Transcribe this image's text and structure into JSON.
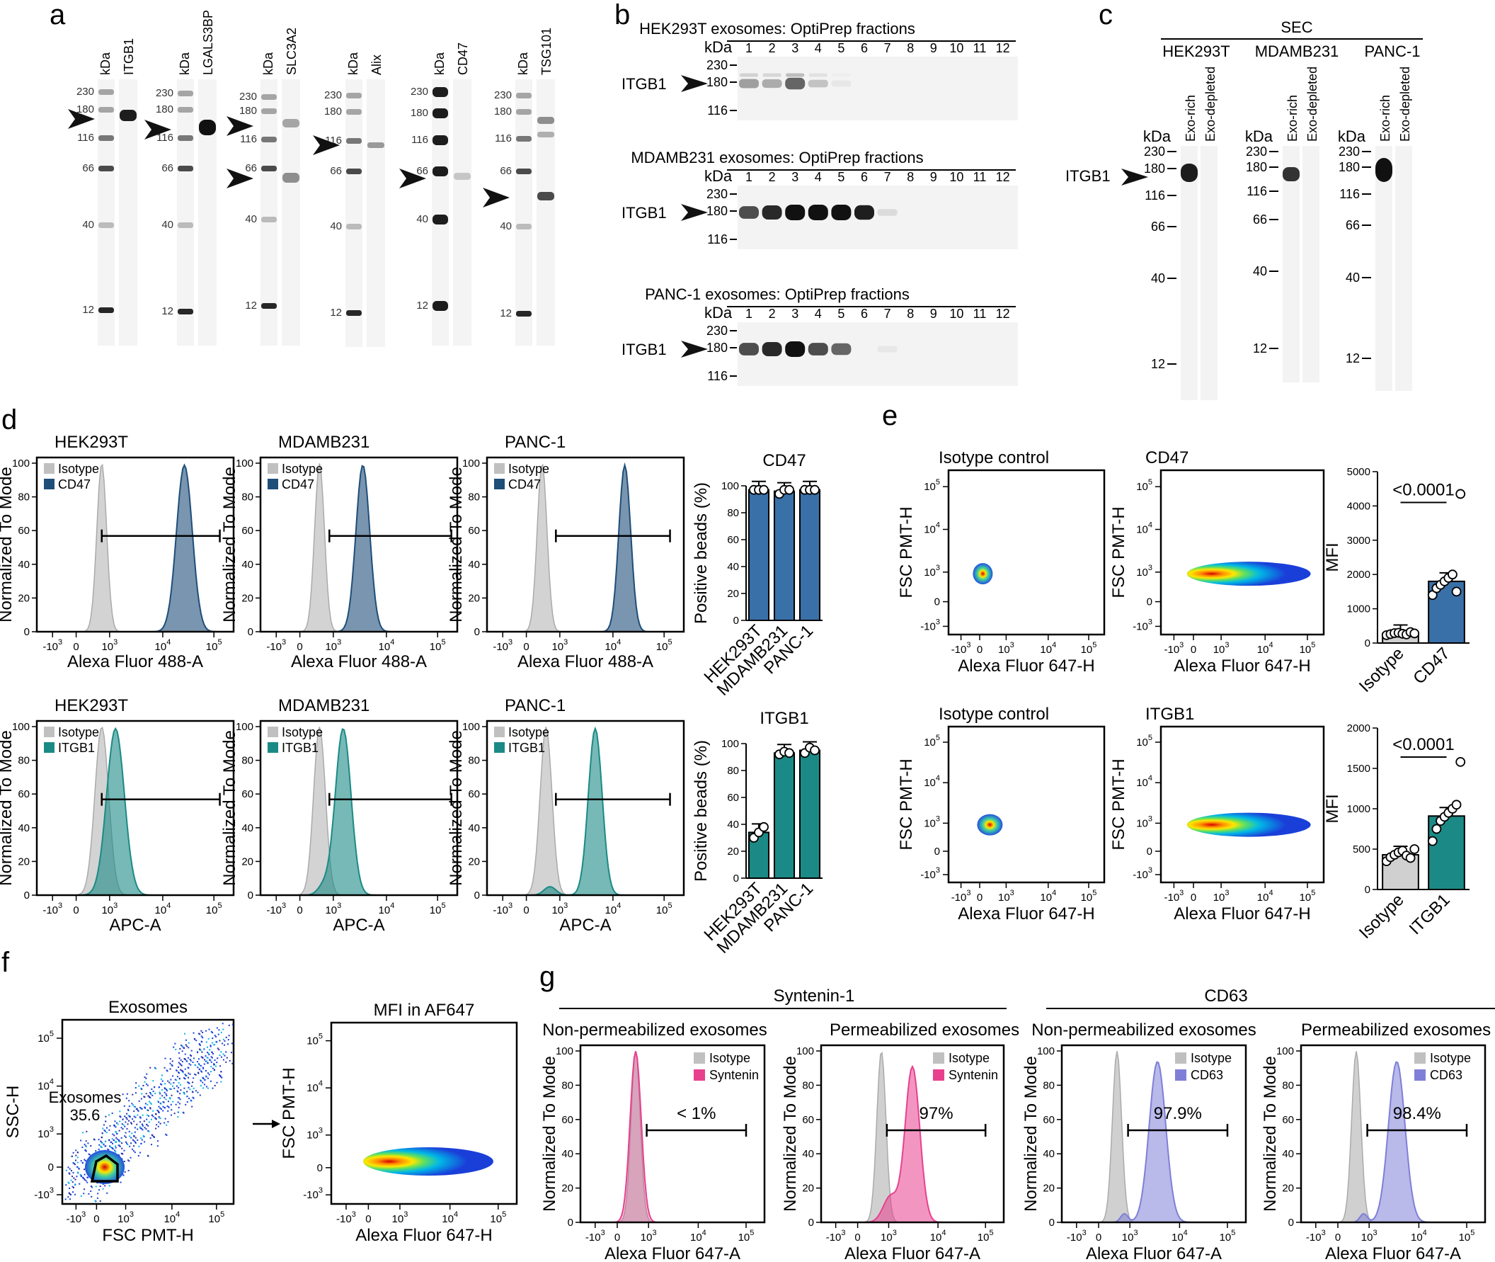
{
  "panels": {
    "a": {
      "label": "a",
      "kda": "kDa",
      "blots": [
        {
          "marker_labels": [
            "230",
            "180",
            "116",
            "66",
            "40",
            "12"
          ],
          "target": "ITGB1"
        },
        {
          "marker_labels": [
            "230",
            "180",
            "116",
            "66",
            "40",
            "12"
          ],
          "target": "LGALS3BP"
        },
        {
          "marker_labels": [
            "230",
            "180",
            "116",
            "66",
            "40",
            "12"
          ],
          "target": "SLC3A2"
        },
        {
          "marker_labels": [
            "230",
            "180",
            "116",
            "66",
            "40",
            "12"
          ],
          "target": "Alix"
        },
        {
          "marker_labels": [
            "230",
            "180",
            "116",
            "66",
            "40",
            "12"
          ],
          "target": "CD47"
        },
        {
          "marker_labels": [
            "230",
            "180",
            "116",
            "66",
            "40",
            "12"
          ],
          "target": "TSG101"
        }
      ]
    },
    "b": {
      "label": "b",
      "kda": "kDa",
      "target": "ITGB1",
      "fractions": [
        "1",
        "2",
        "3",
        "4",
        "5",
        "6",
        "7",
        "8",
        "9",
        "10",
        "11",
        "12"
      ],
      "markers": [
        "230",
        "180",
        "116"
      ],
      "blots": [
        {
          "title": "HEK293T exosomes: OptiPrep fractions",
          "band_intensity": [
            0.35,
            0.3,
            0.6,
            0.2,
            0.05,
            0,
            0,
            0,
            0,
            0,
            0,
            0
          ]
        },
        {
          "title": "MDAMB231 exosomes: OptiPrep fractions",
          "band_intensity": [
            0.7,
            0.85,
            1,
            1,
            1,
            0.9,
            0.1,
            0,
            0,
            0,
            0,
            0
          ]
        },
        {
          "title": "PANC-1 exosomes: OptiPrep fractions",
          "band_intensity": [
            0.7,
            0.85,
            1,
            0.7,
            0.6,
            0,
            0.05,
            0,
            0,
            0,
            0,
            0
          ]
        }
      ]
    },
    "c": {
      "label": "c",
      "header": "SEC",
      "kda": "kDa",
      "target": "ITGB1",
      "lanes": [
        "Exo-rich",
        "Exo-depleted"
      ],
      "markers": [
        "230",
        "180",
        "116",
        "66",
        "40",
        "12"
      ],
      "cells": [
        "HEK293T",
        "MDAMB231",
        "PANC-1"
      ]
    },
    "d": {
      "label": "d",
      "ylabel": "Normalized To Mode",
      "yticks": [
        "0",
        "20",
        "40",
        "60",
        "80",
        "100"
      ],
      "xticks": [
        "-10",
        "0",
        "10",
        "10",
        "10"
      ],
      "xexp": [
        "3",
        "",
        "3",
        "4",
        "5"
      ],
      "isotype": "Isotype",
      "rows": [
        {
          "marker": "CD47",
          "xlabel": "Alexa Fluor 488-A",
          "cells": [
            "HEK293T",
            "MDAMB231",
            "PANC-1"
          ],
          "color": "#1f4e79"
        },
        {
          "marker": "ITGB1",
          "xlabel": "APC-A",
          "cells": [
            "HEK293T",
            "MDAMB231",
            "PANC-1"
          ],
          "color": "#1b8a86"
        }
      ],
      "bar_ylabel": "Positive beads (%)",
      "bar_yticks": [
        "0",
        "20",
        "40",
        "60",
        "80",
        "100"
      ]
    },
    "e": {
      "label": "e",
      "ylabel": "FSC PMT-H",
      "xlabel": "Alexa Fluor 647-H",
      "rows": [
        {
          "left_title": "Isotype control",
          "right_title": "CD47",
          "mfi_ticks": [
            "0",
            "1000",
            "2000",
            "3000",
            "4000",
            "5000"
          ],
          "pval": "<0.0001",
          "groups": [
            "Isotype",
            "CD47"
          ]
        },
        {
          "left_title": "Isotype control",
          "right_title": "ITGB1",
          "mfi_ticks": [
            "0",
            "500",
            "1000",
            "1500",
            "2000"
          ],
          "pval": "<0.0001",
          "groups": [
            "Isotype",
            "ITGB1"
          ]
        }
      ],
      "mfi_label": "MFI",
      "yticks": [
        "-10",
        "0",
        "10",
        "10",
        "10"
      ],
      "yexp": [
        "3",
        "",
        "3",
        "4",
        "5"
      ]
    },
    "f": {
      "label": "f",
      "left_title": "Exosomes",
      "gate_label": "Exosomes",
      "gate_value": "35.6",
      "left_ylabel": "SSC-H",
      "left_xlabel": "FSC PMT-H",
      "right_title": "MFI in AF647",
      "right_ylabel": "FSC PMT-H",
      "right_xlabel": "Alexa Fluor 647-H"
    },
    "g": {
      "label": "g",
      "groups": [
        "Syntenin-1",
        "CD63"
      ],
      "panels": [
        {
          "title": "Non-permeabilized exosomes",
          "marker": "Syntenin",
          "pct": "< 1%",
          "color": "#e8408e"
        },
        {
          "title": "Permeabilized exosomes",
          "marker": "Syntenin",
          "pct": "97%",
          "color": "#e8408e"
        },
        {
          "title": "Non-permeabilized exosomes",
          "marker": "CD63",
          "pct": "97.9%",
          "color": "#7f7fd8"
        },
        {
          "title": "Permeabilized exosomes",
          "marker": "CD63",
          "pct": "98.4%",
          "color": "#7f7fd8"
        }
      ],
      "ylabel": "Normalized To Mode",
      "xlabel": "Alexa Fluor 647-A",
      "isotype": "Isotype"
    }
  },
  "chart_data": [
    {
      "type": "bar",
      "title": "CD47",
      "categories": [
        "HEK293T",
        "MDAMB231",
        "PANC-1"
      ],
      "values": [
        97,
        96,
        97
      ],
      "ylabel": "Positive beads (%)",
      "ylim": [
        0,
        100
      ]
    },
    {
      "type": "bar",
      "title": "ITGB1",
      "categories": [
        "HEK293T",
        "MDAMB231",
        "PANC-1"
      ],
      "values": [
        34,
        93,
        95
      ],
      "ylabel": "Positive beads (%)",
      "ylim": [
        0,
        100
      ]
    },
    {
      "type": "bar",
      "categories": [
        "Isotype",
        "CD47"
      ],
      "values": [
        280,
        1800
      ],
      "ylabel": "MFI",
      "ylim": [
        0,
        5000
      ]
    },
    {
      "type": "bar",
      "categories": [
        "Isotype",
        "ITGB1"
      ],
      "values": [
        430,
        910
      ],
      "ylabel": "MFI",
      "ylim": [
        0,
        2000
      ]
    }
  ]
}
